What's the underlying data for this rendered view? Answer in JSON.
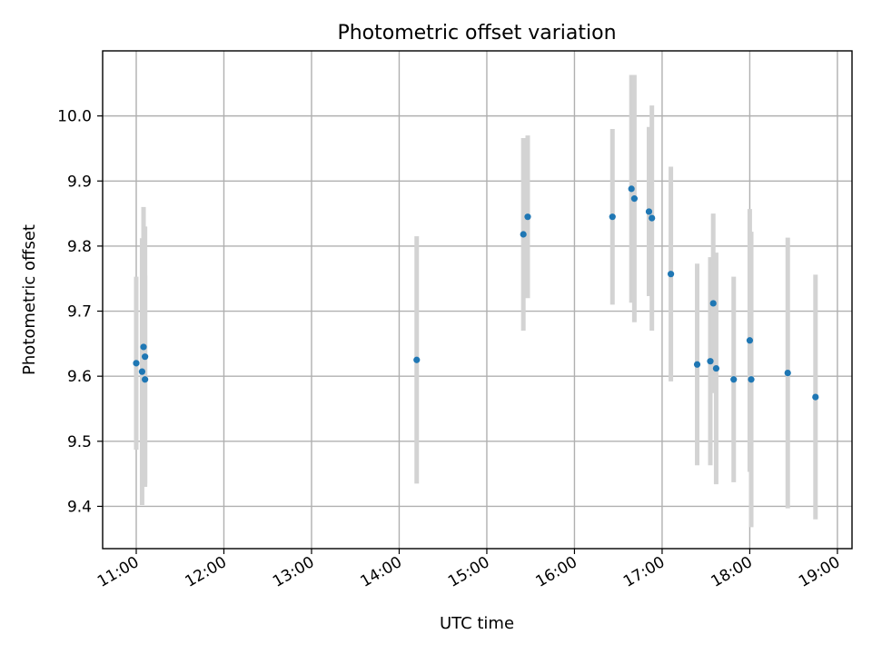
{
  "chart_data": {
    "type": "scatter",
    "title": "Photometric offset variation",
    "xlabel": "UTC time",
    "ylabel": "Photometric offset",
    "xlim": [
      "10:37",
      "19:10"
    ],
    "ylim": [
      9.335,
      10.1
    ],
    "grid": true,
    "x_ticks": [
      "11:00",
      "12:00",
      "13:00",
      "14:00",
      "15:00",
      "16:00",
      "17:00",
      "18:00",
      "19:00"
    ],
    "y_ticks": [
      9.4,
      9.5,
      9.6,
      9.7,
      9.8,
      9.9,
      10.0
    ],
    "y_tick_labels": [
      "9.4",
      "9.5",
      "9.6",
      "9.7",
      "9.8",
      "9.9",
      "10.0"
    ],
    "colors": {
      "points": "#1f77b4",
      "errorbars": "#d3d3d3",
      "grid": "#b0b0b0"
    },
    "points": [
      {
        "time": "11:00",
        "y": 9.62,
        "yerr": 0.133
      },
      {
        "time": "11:04",
        "y": 9.607,
        "yerr": 0.205
      },
      {
        "time": "11:05",
        "y": 9.645,
        "yerr": 0.215
      },
      {
        "time": "11:06",
        "y": 9.63,
        "yerr": 0.2
      },
      {
        "time": "11:06",
        "y": 9.595,
        "yerr": 0.16
      },
      {
        "time": "14:12",
        "y": 9.625,
        "yerr": 0.19
      },
      {
        "time": "15:25",
        "y": 9.818,
        "yerr": 0.148
      },
      {
        "time": "15:28",
        "y": 9.845,
        "yerr": 0.125
      },
      {
        "time": "16:26",
        "y": 9.845,
        "yerr": 0.135
      },
      {
        "time": "16:39",
        "y": 9.888,
        "yerr": 0.175
      },
      {
        "time": "16:41",
        "y": 9.873,
        "yerr": 0.19
      },
      {
        "time": "16:51",
        "y": 9.853,
        "yerr": 0.13
      },
      {
        "time": "16:53",
        "y": 9.843,
        "yerr": 0.173
      },
      {
        "time": "17:06",
        "y": 9.757,
        "yerr": 0.165
      },
      {
        "time": "17:24",
        "y": 9.618,
        "yerr": 0.155
      },
      {
        "time": "17:33",
        "y": 9.623,
        "yerr": 0.16
      },
      {
        "time": "17:35",
        "y": 9.712,
        "yerr": 0.138
      },
      {
        "time": "17:37",
        "y": 9.612,
        "yerr": 0.178
      },
      {
        "time": "17:49",
        "y": 9.595,
        "yerr": 0.158
      },
      {
        "time": "18:00",
        "y": 9.655,
        "yerr": 0.202
      },
      {
        "time": "18:01",
        "y": 9.595,
        "yerr": 0.227
      },
      {
        "time": "18:26",
        "y": 9.605,
        "yerr": 0.208
      },
      {
        "time": "18:45",
        "y": 9.568,
        "yerr": 0.188
      }
    ]
  }
}
